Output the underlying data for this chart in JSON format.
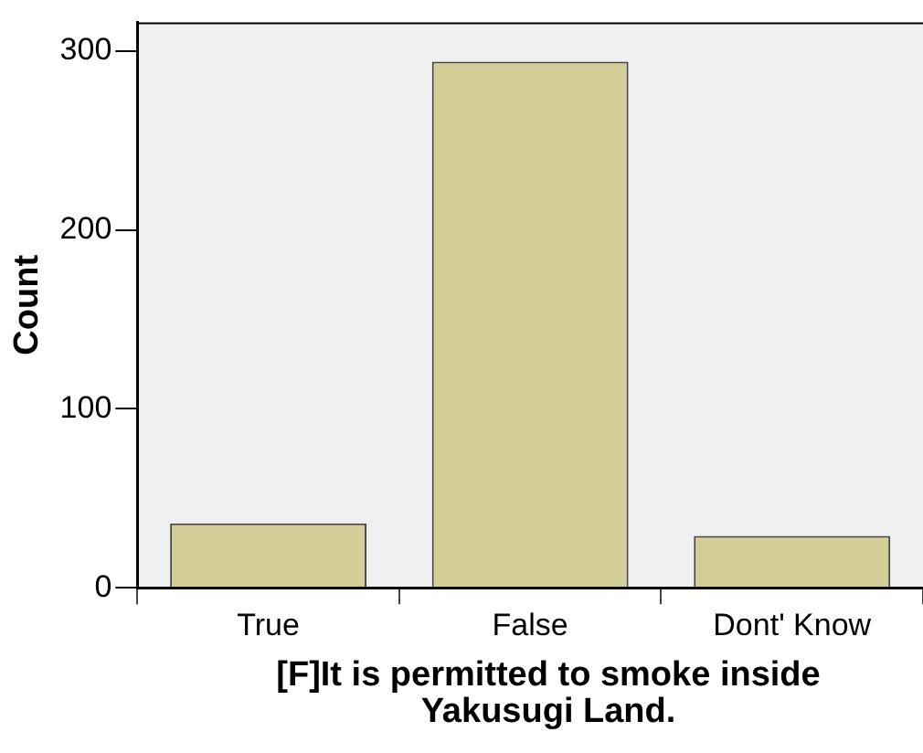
{
  "chart_data": {
    "type": "bar",
    "xlabel": "[F]It is permitted to smoke inside Yakusugi Land.",
    "ylabel": "Count",
    "categories": [
      "True",
      "False",
      "Dont' Know"
    ],
    "values": [
      36,
      294,
      29
    ],
    "color": "#d3ce97",
    "ylim": [
      0,
      316
    ],
    "yticks": [
      0,
      100,
      200,
      300
    ],
    "grid": false
  }
}
